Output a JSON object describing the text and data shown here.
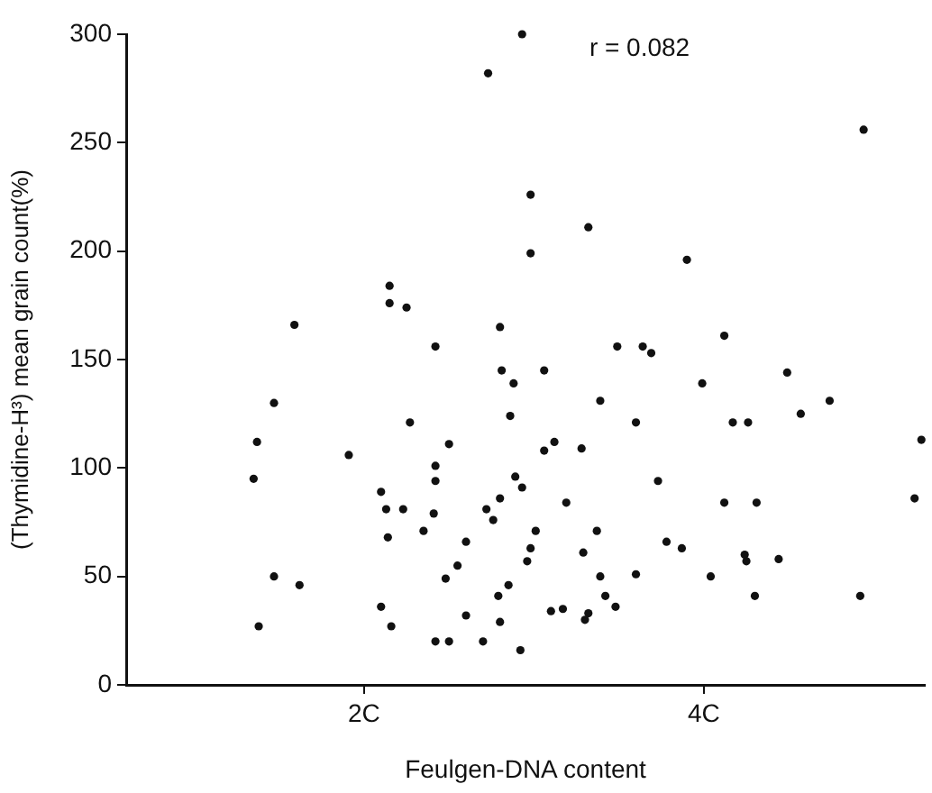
{
  "chart_data": {
    "type": "scatter",
    "xlabel": "Feulgen-DNA content",
    "ylabel": "(Thymidine-H³) mean grain count(%)",
    "annotations": [
      "r = 0.082"
    ],
    "xlim": [
      0.6,
      5.3
    ],
    "xticks": [
      {
        "value": 2,
        "label": "2C"
      },
      {
        "value": 4,
        "label": "4C"
      }
    ],
    "ylim": [
      0,
      300
    ],
    "yticks": [
      0,
      50,
      100,
      150,
      200,
      250,
      300
    ],
    "grid": false,
    "legend": false,
    "marker": "circle",
    "series": [
      {
        "color": "#111111",
        "x": [
          1.59,
          2.15,
          2.15,
          2.25,
          2.42,
          2.93,
          2.73,
          4.94,
          2.98,
          3.32,
          2.98,
          3.9,
          2.8,
          4.12,
          3.49,
          3.64,
          3.69,
          2.81,
          3.06,
          2.88,
          3.99,
          4.49,
          1.47,
          1.37,
          1.35,
          1.47,
          1.38,
          1.62,
          1.91,
          2.27,
          2.5,
          2.42,
          2.42,
          2.1,
          2.13,
          2.23,
          2.41,
          2.14,
          2.35,
          2.6,
          2.55,
          2.48,
          2.1,
          2.16,
          2.42,
          2.5,
          2.6,
          3.39,
          2.86,
          3.6,
          4.17,
          4.26,
          4.57,
          4.74,
          5.28,
          3.06,
          3.12,
          3.28,
          2.89,
          2.93,
          3.73,
          2.72,
          2.8,
          2.76,
          3.19,
          4.12,
          4.31,
          5.24,
          3.01,
          2.98,
          3.37,
          3.29,
          3.78,
          3.87,
          4.24,
          4.25,
          4.44,
          2.96,
          2.85,
          2.79,
          3.39,
          3.6,
          4.04,
          3.42,
          3.48,
          3.1,
          3.17,
          3.32,
          3.3,
          4.3,
          4.92,
          2.8,
          2.7,
          2.92
        ],
        "values": [
          166,
          184,
          176,
          174,
          156,
          300,
          282,
          256,
          226,
          211,
          199,
          196,
          165,
          161,
          156,
          156,
          153,
          145,
          145,
          139,
          139,
          144,
          130,
          112,
          95,
          50,
          27,
          46,
          106,
          121,
          111,
          101,
          94,
          89,
          81,
          81,
          79,
          68,
          71,
          66,
          55,
          49,
          36,
          27,
          20,
          20,
          32,
          131,
          124,
          121,
          121,
          121,
          125,
          131,
          113,
          108,
          112,
          109,
          96,
          91,
          94,
          81,
          86,
          76,
          84,
          84,
          84,
          86,
          71,
          63,
          71,
          61,
          66,
          63,
          60,
          57,
          58,
          57,
          46,
          41,
          50,
          51,
          50,
          41,
          36,
          34,
          35,
          33,
          30,
          41,
          41,
          29,
          20,
          16
        ]
      }
    ]
  }
}
